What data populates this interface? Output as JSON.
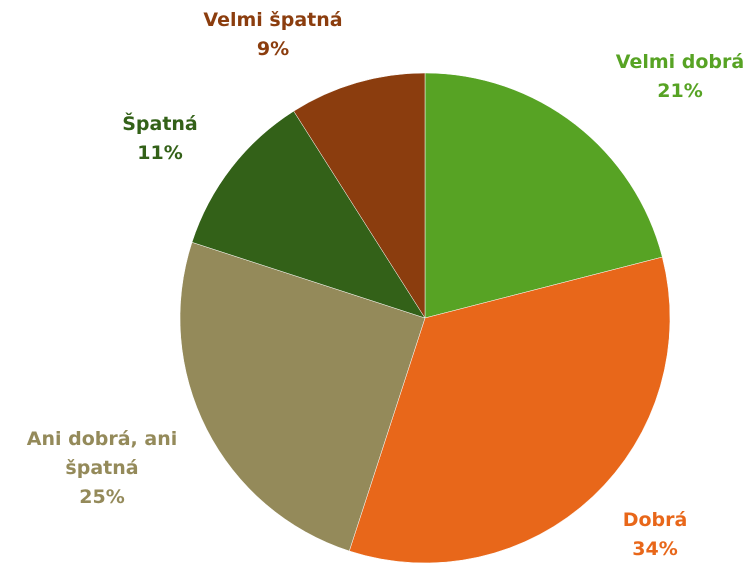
{
  "chart_data": {
    "type": "pie",
    "categories": [
      "Velmi dobrá",
      "Dobrá",
      "Ani dobrá, ani špatná",
      "Špatná",
      "Velmi špatná"
    ],
    "values": [
      21,
      34,
      25,
      11,
      9
    ],
    "value_labels": [
      "21%",
      "34%",
      "25%",
      "11%",
      "9%"
    ],
    "colors": [
      "#57a324",
      "#e8671a",
      "#948a5a",
      "#336118",
      "#8b3d0e"
    ]
  }
}
